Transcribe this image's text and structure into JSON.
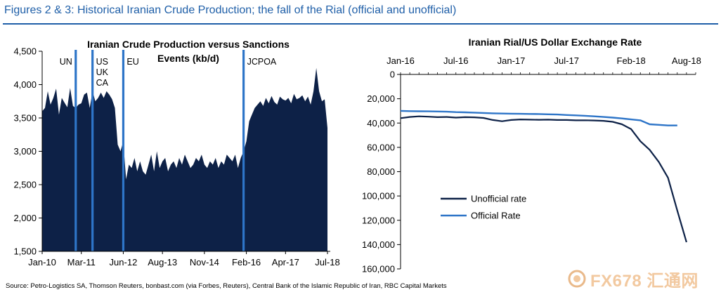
{
  "figure_title": "Figures 2 & 3: Historical Iranian Crude Production; the fall of the Rial (official and unofficial)",
  "source": "Source: Petro-Logistics SA, Thomson Reuters, bonbast.com (via Forbes, Reuters), Central Bank of the Islamic Republic of Iran, RBC Capital Markets",
  "watermark": "FX678 汇通网",
  "chart_data": [
    {
      "type": "area",
      "title": "Iranian Crude Production versus Sanctions Events (kb/d)",
      "title_lines": [
        "Iranian Crude Production versus Sanctions",
        "Events (kb/d)"
      ],
      "xlabel": "",
      "ylabel": "",
      "x_range": [
        "2010-01",
        "2018-08"
      ],
      "ylim": [
        1500,
        4500
      ],
      "y_ticks": [
        1500,
        2000,
        2500,
        3000,
        3500,
        4000,
        4500
      ],
      "y_tick_labels": [
        "1,500",
        "2,000",
        "2,500",
        "3,000",
        "3,500",
        "4,000",
        "4,500"
      ],
      "x_tick_labels": [
        {
          "x": "2010-01",
          "label": "Jan-10"
        },
        {
          "x": "2011-03",
          "label": "Mar-11"
        },
        {
          "x": "2012-06",
          "label": "Jun-12"
        },
        {
          "x": "2013-08",
          "label": "Aug-13"
        },
        {
          "x": "2014-11",
          "label": "Nov-14"
        },
        {
          "x": "2016-02",
          "label": "Feb-16"
        },
        {
          "x": "2017-04",
          "label": "Apr-17"
        },
        {
          "x": "2018-07",
          "label": "Jul-18"
        }
      ],
      "color": "#0d2147",
      "grid": false,
      "series": [
        {
          "x": [
            "2010-01",
            "2010-02",
            "2010-03",
            "2010-04",
            "2010-05",
            "2010-06",
            "2010-07",
            "2010-08",
            "2010-09",
            "2010-10",
            "2010-11",
            "2010-12",
            "2011-01",
            "2011-02",
            "2011-03",
            "2011-04",
            "2011-05",
            "2011-06",
            "2011-07",
            "2011-08",
            "2011-09",
            "2011-10",
            "2011-11",
            "2011-12",
            "2012-01",
            "2012-02",
            "2012-03",
            "2012-04",
            "2012-05",
            "2012-06",
            "2012-07",
            "2012-08",
            "2012-09",
            "2012-10",
            "2012-11",
            "2012-12",
            "2013-01",
            "2013-02",
            "2013-03",
            "2013-04",
            "2013-05",
            "2013-06",
            "2013-07",
            "2013-08",
            "2013-09",
            "2013-10",
            "2013-11",
            "2013-12",
            "2014-01",
            "2014-02",
            "2014-03",
            "2014-04",
            "2014-05",
            "2014-06",
            "2014-07",
            "2014-08",
            "2014-09",
            "2014-10",
            "2014-11",
            "2014-12",
            "2015-01",
            "2015-02",
            "2015-03",
            "2015-04",
            "2015-05",
            "2015-06",
            "2015-07",
            "2015-08",
            "2015-09",
            "2015-10",
            "2015-11",
            "2015-12",
            "2016-01",
            "2016-02",
            "2016-03",
            "2016-04",
            "2016-05",
            "2016-06",
            "2016-07",
            "2016-08",
            "2016-09",
            "2016-10",
            "2016-11",
            "2016-12",
            "2017-01",
            "2017-02",
            "2017-03",
            "2017-04",
            "2017-05",
            "2017-06",
            "2017-07",
            "2017-08",
            "2017-09",
            "2017-10",
            "2017-11",
            "2017-12",
            "2018-01",
            "2018-02",
            "2018-03",
            "2018-04",
            "2018-05",
            "2018-06",
            "2018-07"
          ],
          "values": [
            3600,
            3650,
            3900,
            3700,
            3800,
            3940,
            3550,
            3800,
            3730,
            3660,
            3950,
            3680,
            3650,
            3700,
            3720,
            3850,
            3880,
            3650,
            3900,
            3750,
            3800,
            3880,
            3800,
            3900,
            3850,
            3780,
            3650,
            3100,
            3000,
            3150,
            2580,
            2800,
            2750,
            2900,
            2700,
            2850,
            2700,
            2650,
            2800,
            2950,
            2700,
            3000,
            2750,
            2850,
            2900,
            2700,
            2800,
            2850,
            2750,
            2900,
            2800,
            2950,
            2850,
            2750,
            2800,
            2900,
            2850,
            2950,
            2800,
            2750,
            2850,
            2800,
            2900,
            2750,
            2850,
            2800,
            2950,
            2900,
            2850,
            2950,
            2750,
            2900,
            3000,
            3150,
            3450,
            3550,
            3650,
            3700,
            3750,
            3680,
            3800,
            3720,
            3830,
            3740,
            3700,
            3820,
            3780,
            3760,
            3800,
            3720,
            3860,
            3780,
            3800,
            3840,
            3750,
            3820,
            3700,
            3900,
            4250,
            3900,
            3750,
            3780,
            3350
          ]
        }
      ],
      "events": [
        {
          "x": "2011-01",
          "label": "UN"
        },
        {
          "x": "2011-07",
          "label": "US\nUK\nCA"
        },
        {
          "x": "2012-06",
          "label": "EU"
        },
        {
          "x": "2016-01",
          "label": "JCPOA"
        }
      ]
    },
    {
      "type": "line",
      "title": "Iranian Rial/US Dollar Exchange Rate",
      "xlabel": "",
      "ylabel": "",
      "x_range": [
        "2016-01",
        "2018-09"
      ],
      "ylim": [
        0,
        160000
      ],
      "y_inverted": true,
      "y_ticks": [
        0,
        20000,
        40000,
        60000,
        80000,
        100000,
        120000,
        140000,
        160000
      ],
      "y_tick_labels": [
        "0",
        "20,000",
        "40,000",
        "60,000",
        "80,000",
        "100,000",
        "120,000",
        "140,000",
        "160,000"
      ],
      "x_tick_labels": [
        {
          "x": "2016-01",
          "label": "Jan-16"
        },
        {
          "x": "2016-07",
          "label": "Jul-16"
        },
        {
          "x": "2017-01",
          "label": "Jan-17"
        },
        {
          "x": "2017-07",
          "label": "Jul-17"
        },
        {
          "x": "2018-02",
          "label": "Feb-18"
        },
        {
          "x": "2018-08",
          "label": "Aug-18"
        }
      ],
      "legend_position": "bottom-left",
      "grid": false,
      "series": [
        {
          "name": "Unofficial rate",
          "color": "#0d2147",
          "x": [
            "2016-01",
            "2016-02",
            "2016-03",
            "2016-04",
            "2016-05",
            "2016-06",
            "2016-07",
            "2016-08",
            "2016-09",
            "2016-10",
            "2016-11",
            "2016-12",
            "2017-01",
            "2017-02",
            "2017-03",
            "2017-04",
            "2017-05",
            "2017-06",
            "2017-07",
            "2017-08",
            "2017-09",
            "2017-10",
            "2017-11",
            "2017-12",
            "2018-01",
            "2018-02",
            "2018-03",
            "2018-04",
            "2018-05",
            "2018-06",
            "2018-07",
            "2018-08"
          ],
          "values": [
            36000,
            35000,
            34500,
            34800,
            35200,
            35000,
            35500,
            35200,
            35300,
            35800,
            37500,
            38500,
            37500,
            37000,
            37200,
            37300,
            37200,
            37500,
            37500,
            37800,
            37700,
            37900,
            38200,
            39000,
            41000,
            45000,
            55000,
            62000,
            72000,
            85000,
            112000,
            138000
          ]
        },
        {
          "name": "Official Rate",
          "color": "#2e75c8",
          "x": [
            "2016-01",
            "2016-02",
            "2016-03",
            "2016-04",
            "2016-05",
            "2016-06",
            "2016-07",
            "2016-08",
            "2016-09",
            "2016-10",
            "2016-11",
            "2016-12",
            "2017-01",
            "2017-02",
            "2017-03",
            "2017-04",
            "2017-05",
            "2017-06",
            "2017-07",
            "2017-08",
            "2017-09",
            "2017-10",
            "2017-11",
            "2017-12",
            "2018-01",
            "2018-02",
            "2018-03",
            "2018-04",
            "2018-05",
            "2018-06",
            "2018-07"
          ],
          "values": [
            30000,
            30200,
            30300,
            30400,
            30500,
            30700,
            31000,
            31200,
            31400,
            31700,
            32000,
            32200,
            32300,
            32400,
            32500,
            32600,
            32800,
            33000,
            33400,
            33700,
            34000,
            34500,
            35000,
            35500,
            36200,
            37000,
            37800,
            41000,
            41500,
            42000,
            42000
          ]
        }
      ]
    }
  ]
}
